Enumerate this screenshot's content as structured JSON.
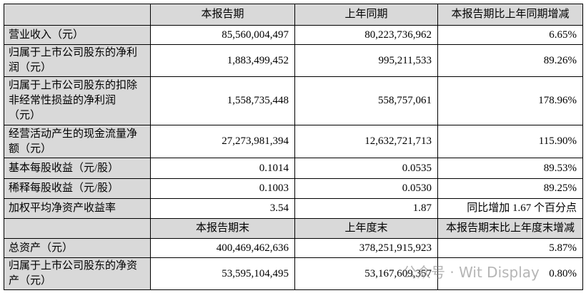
{
  "table": {
    "header": [
      "",
      "本报告期",
      "上年同期",
      "本报告期比上年同期增减"
    ],
    "rows": [
      [
        "营业收入（元）",
        "85,560,004,497",
        "80,223,736,962",
        "6.65%"
      ],
      [
        "归属于上市公司股东的净利润（元）",
        "1,883,499,452",
        "995,211,533",
        "89.26%"
      ],
      [
        "归属于上市公司股东的扣除非经常性损益的净利润（元）",
        "1,558,735,448",
        "558,757,061",
        "178.96%"
      ],
      [
        "经营活动产生的现金流量净额（元）",
        "27,273,981,394",
        "12,632,721,713",
        "115.90%"
      ],
      [
        "基本每股收益（元/股）",
        "0.1014",
        "0.0535",
        "89.53%"
      ],
      [
        "稀释每股收益（元/股）",
        "0.1003",
        "0.0530",
        "89.25%"
      ],
      [
        "加权平均净资产收益率",
        "3.54",
        "1.87",
        "同比增加 1.67 个百分点"
      ]
    ],
    "header2": [
      "",
      "本报告期末",
      "上年度末",
      "本报告期末比上年度末增减"
    ],
    "rows2": [
      [
        "总资产（元）",
        "400,469,462,636",
        "378,251,915,923",
        "5.87%"
      ],
      [
        "归属于上市公司股东的净资产（元）",
        "53,595,104,495",
        "53,167,609,357",
        "0.80%"
      ]
    ]
  },
  "watermark": "公众号 · Wit Display"
}
